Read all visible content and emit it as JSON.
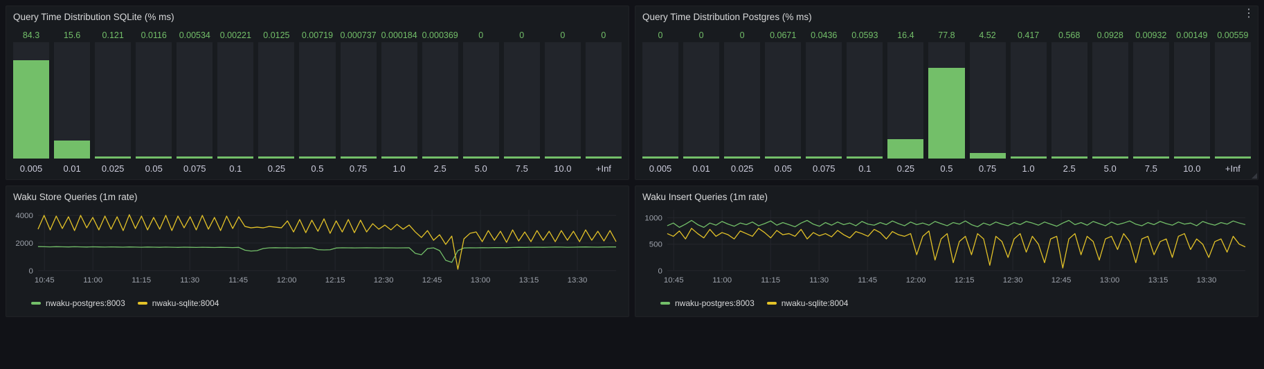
{
  "icons": {
    "panel_menu": "⋮"
  },
  "colors": {
    "green": "#73BF69",
    "yellow": "#E3C228",
    "page_bg": "#111217",
    "panel_bg": "#181B1F",
    "bar_bg": "#22252B",
    "grid": "#24262C",
    "value_text": "#73BF69",
    "tick_text": "#9DA2AB",
    "label_text": "#CCCCDC"
  },
  "chart_data": [
    {
      "type": "bar",
      "title": "Query Time Distribution SQLite (% ms)",
      "categories": [
        "0.005",
        "0.01",
        "0.025",
        "0.05",
        "0.075",
        "0.1",
        "0.25",
        "0.5",
        "0.75",
        "1.0",
        "2.5",
        "5.0",
        "7.5",
        "10.0",
        "+Inf"
      ],
      "values": [
        84.3,
        15.6,
        0.121,
        0.0116,
        0.00534,
        0.00221,
        0.0125,
        0.00719,
        0.000737,
        0.000184,
        0.000369,
        0,
        0,
        0,
        0
      ],
      "ylim": [
        0,
        100
      ],
      "bar_color": "#73BF69",
      "xlabel": "",
      "ylabel": ""
    },
    {
      "type": "bar",
      "title": "Query Time Distribution Postgres (% ms)",
      "categories": [
        "0.005",
        "0.01",
        "0.025",
        "0.05",
        "0.075",
        "0.1",
        "0.25",
        "0.5",
        "0.75",
        "1.0",
        "2.5",
        "5.0",
        "7.5",
        "10.0",
        "+Inf"
      ],
      "values": [
        0,
        0,
        0,
        0.0671,
        0.0436,
        0.0593,
        16.4,
        77.8,
        4.52,
        0.417,
        0.568,
        0.0928,
        0.00932,
        0.00149,
        0.00559
      ],
      "ylim": [
        0,
        100
      ],
      "bar_color": "#73BF69",
      "xlabel": "",
      "ylabel": ""
    },
    {
      "type": "line",
      "title": "Waku Store Queries (1m rate)",
      "x_ticks": [
        "10:45",
        "11:00",
        "11:15",
        "11:30",
        "11:45",
        "12:00",
        "12:15",
        "12:30",
        "12:45",
        "13:00",
        "13:15",
        "13:30"
      ],
      "x_start": "10:43",
      "x_end": "13:42",
      "y_ticks": [
        0,
        2000,
        4000
      ],
      "ylim": [
        0,
        4400
      ],
      "legend_position": "bottom",
      "series": [
        {
          "name": "nwaku-postgres:8003",
          "color": "#73BF69",
          "values": [
            1740,
            1730,
            1720,
            1735,
            1725,
            1715,
            1730,
            1720,
            1710,
            1725,
            1715,
            1705,
            1720,
            1710,
            1700,
            1715,
            1705,
            1695,
            1710,
            1700,
            1690,
            1705,
            1695,
            1685,
            1700,
            1690,
            1680,
            1695,
            1685,
            1675,
            1690,
            1680,
            1670,
            1685,
            1480,
            1420,
            1450,
            1600,
            1650,
            1660,
            1650,
            1655,
            1645,
            1650,
            1660,
            1650,
            1520,
            1500,
            1510,
            1640,
            1655,
            1650,
            1645,
            1650,
            1655,
            1650,
            1645,
            1655,
            1650,
            1645,
            1650,
            1655,
            1250,
            1150,
            1600,
            1650,
            1450,
            750,
            600,
            1450,
            1640,
            1655,
            1650,
            1660,
            1655,
            1665,
            1670,
            1660,
            1680,
            1690,
            1685,
            1695,
            1700,
            1690,
            1700,
            1710,
            1705,
            1695,
            1700,
            1710,
            1715,
            1705,
            1700,
            1710,
            1720,
            1715
          ]
        },
        {
          "name": "nwaku-sqlite:8004",
          "color": "#E3C228",
          "values": [
            3000,
            4000,
            2950,
            3950,
            3050,
            3900,
            2900,
            4000,
            3100,
            3850,
            2950,
            3950,
            3000,
            3900,
            2900,
            4050,
            3050,
            3950,
            2950,
            3850,
            3000,
            4000,
            2900,
            3950,
            3100,
            3900,
            2950,
            4000,
            3000,
            3850,
            2900,
            3950,
            3050,
            3900,
            3200,
            3100,
            3150,
            3100,
            3200,
            3150,
            3100,
            3600,
            2800,
            3700,
            2750,
            3650,
            2850,
            3750,
            2700,
            3600,
            2800,
            3700,
            2750,
            3650,
            2800,
            3400,
            3000,
            3300,
            2950,
            3350,
            3000,
            3300,
            2800,
            2400,
            2900,
            2200,
            2600,
            1900,
            2500,
            100,
            2300,
            2700,
            2800,
            2100,
            2900,
            2200,
            2850,
            2050,
            2950,
            2150,
            2800,
            2100,
            2900,
            2200,
            2850,
            2100,
            2900,
            2200,
            2850,
            2100,
            2950,
            2200,
            2850,
            2150,
            2900,
            2100
          ]
        }
      ]
    },
    {
      "type": "line",
      "title": "Waku Insert Queries (1m rate)",
      "x_ticks": [
        "10:45",
        "11:00",
        "11:15",
        "11:30",
        "11:45",
        "12:00",
        "12:15",
        "12:30",
        "12:45",
        "13:00",
        "13:15",
        "13:30"
      ],
      "x_start": "10:43",
      "x_end": "13:42",
      "y_ticks": [
        0,
        500,
        1000
      ],
      "ylim": [
        0,
        1150
      ],
      "legend_position": "bottom",
      "series": [
        {
          "name": "nwaku-postgres:8003",
          "color": "#73BF69",
          "values": [
            850,
            900,
            820,
            880,
            950,
            870,
            820,
            900,
            860,
            930,
            880,
            840,
            900,
            870,
            920,
            850,
            890,
            940,
            860,
            910,
            870,
            830,
            900,
            950,
            880,
            840,
            910,
            860,
            920,
            870,
            900,
            850,
            930,
            880,
            860,
            910,
            870,
            940,
            890,
            850,
            920,
            870,
            900,
            860,
            930,
            890,
            850,
            910,
            880,
            940,
            870,
            830,
            900,
            860,
            920,
            880,
            850,
            910,
            870,
            930,
            900,
            860,
            920,
            880,
            840,
            900,
            950,
            870,
            910,
            860,
            930,
            890,
            850,
            920,
            870,
            900,
            940,
            880,
            850,
            910,
            870,
            930,
            890,
            860,
            920,
            880,
            900,
            850,
            930,
            890,
            860,
            910,
            880,
            940,
            900,
            870
          ]
        },
        {
          "name": "nwaku-sqlite:8004",
          "color": "#E3C228",
          "values": [
            700,
            650,
            750,
            600,
            800,
            700,
            620,
            780,
            650,
            720,
            680,
            600,
            750,
            700,
            650,
            800,
            720,
            620,
            760,
            680,
            700,
            650,
            780,
            600,
            720,
            660,
            700,
            640,
            760,
            680,
            620,
            740,
            700,
            650,
            780,
            720,
            600,
            740,
            680,
            650,
            700,
            300,
            650,
            750,
            200,
            600,
            700,
            150,
            550,
            650,
            300,
            700,
            600,
            100,
            650,
            550,
            250,
            600,
            700,
            350,
            650,
            500,
            150,
            600,
            650,
            50,
            600,
            700,
            300,
            650,
            550,
            200,
            600,
            650,
            400,
            700,
            550,
            150,
            600,
            650,
            300,
            550,
            600,
            250,
            650,
            700,
            400,
            600,
            500,
            250,
            550,
            600,
            350,
            650,
            500,
            450
          ]
        }
      ]
    }
  ]
}
